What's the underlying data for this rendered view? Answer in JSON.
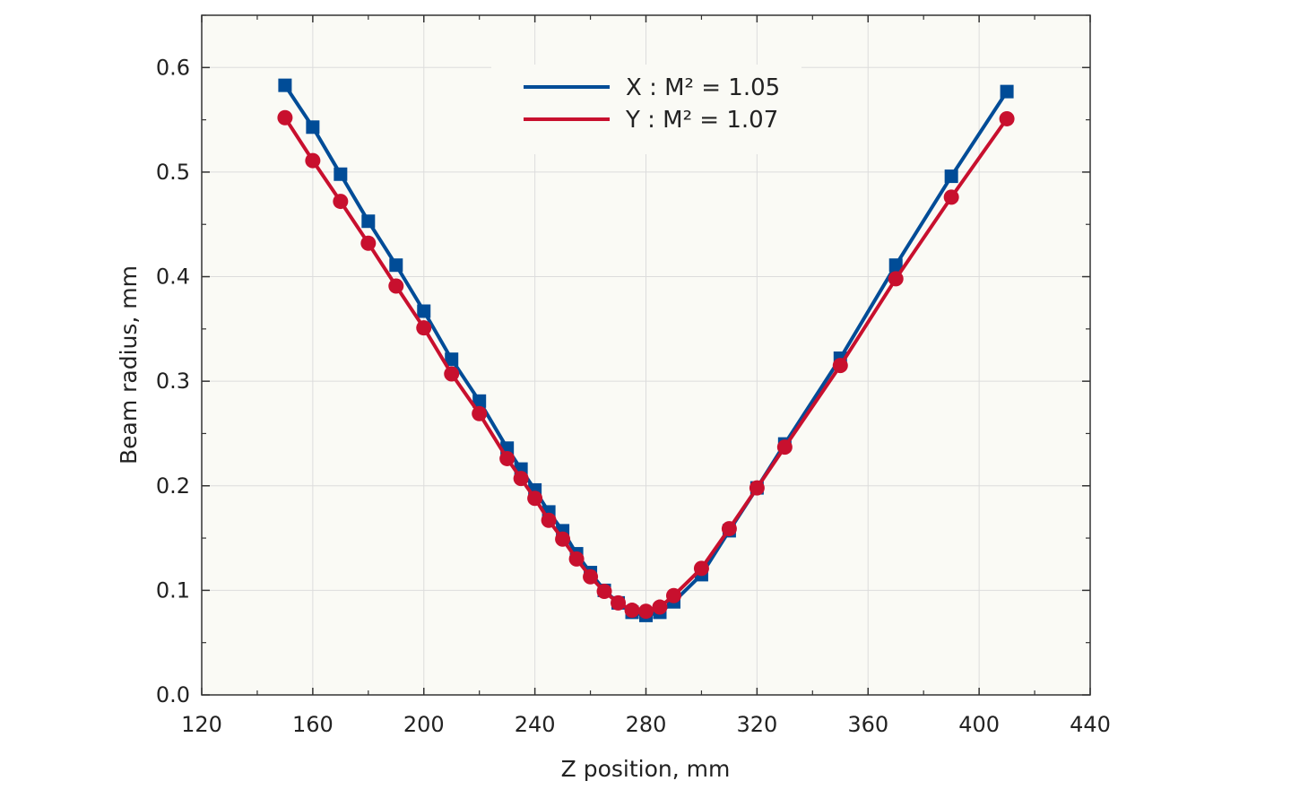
{
  "chart_data": {
    "type": "line",
    "xlabel": "Z position, mm",
    "ylabel": "Beam radius, mm",
    "xlim": [
      120,
      440
    ],
    "ylim": [
      0,
      0.65
    ],
    "x_ticks": [
      120,
      160,
      200,
      240,
      280,
      320,
      360,
      400,
      440
    ],
    "x_tick_labels": [
      "120",
      "160",
      "200",
      "240",
      "280",
      "320",
      "360",
      "400",
      "440"
    ],
    "y_ticks": [
      0.0,
      0.1,
      0.2,
      0.3,
      0.4,
      0.5,
      0.6
    ],
    "y_tick_labels": [
      "0.0",
      "0.1",
      "0.2",
      "0.3",
      "0.4",
      "0.5",
      "0.6"
    ],
    "grid": true,
    "legend_position": "top-center",
    "background_color": "#fafaf5",
    "series": [
      {
        "name": "X : M² = 1.05",
        "color": "#004c97",
        "marker": "square",
        "x": [
          150,
          160,
          170,
          180,
          190,
          200,
          210,
          220,
          230,
          235,
          240,
          245,
          250,
          255,
          260,
          265,
          270,
          275,
          280,
          285,
          290,
          300,
          310,
          320,
          330,
          350,
          370,
          390,
          410
        ],
        "y": [
          0.583,
          0.543,
          0.498,
          0.453,
          0.411,
          0.367,
          0.321,
          0.281,
          0.236,
          0.216,
          0.196,
          0.175,
          0.157,
          0.135,
          0.117,
          0.1,
          0.088,
          0.079,
          0.076,
          0.079,
          0.089,
          0.115,
          0.157,
          0.198,
          0.24,
          0.322,
          0.411,
          0.496,
          0.577
        ]
      },
      {
        "name": "Y : M² = 1.07",
        "color": "#c8102e",
        "marker": "circle",
        "x": [
          150,
          160,
          170,
          180,
          190,
          200,
          210,
          220,
          230,
          235,
          240,
          245,
          250,
          255,
          260,
          265,
          270,
          275,
          280,
          285,
          290,
          300,
          310,
          320,
          330,
          350,
          370,
          390,
          410
        ],
        "y": [
          0.552,
          0.511,
          0.472,
          0.432,
          0.391,
          0.351,
          0.307,
          0.269,
          0.226,
          0.207,
          0.188,
          0.167,
          0.149,
          0.13,
          0.113,
          0.099,
          0.088,
          0.081,
          0.08,
          0.084,
          0.095,
          0.121,
          0.159,
          0.198,
          0.237,
          0.315,
          0.398,
          0.476,
          0.551
        ]
      }
    ]
  }
}
